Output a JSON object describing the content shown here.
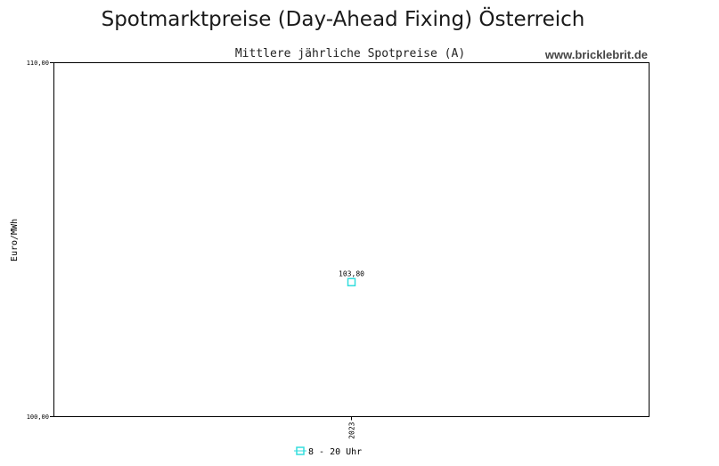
{
  "title": "Spotmarktpreise (Day-Ahead Fixing) Österreich",
  "watermark": "www.bricklebrit.de",
  "chart_data": {
    "type": "scatter",
    "title": "Mittlere jährliche Spotpreise (A)",
    "xlabel": "",
    "ylabel": "Euro/MWh",
    "ylim": [
      100.0,
      110.0
    ],
    "ytick_labels": [
      "110,00",
      "100,00"
    ],
    "categories": [
      "2023"
    ],
    "series": [
      {
        "name": "8 - 20 Uhr",
        "values": [
          103.8
        ],
        "value_labels": [
          "103,80"
        ],
        "color": "#33dddd"
      }
    ],
    "grid": false,
    "legend": "bottom"
  }
}
